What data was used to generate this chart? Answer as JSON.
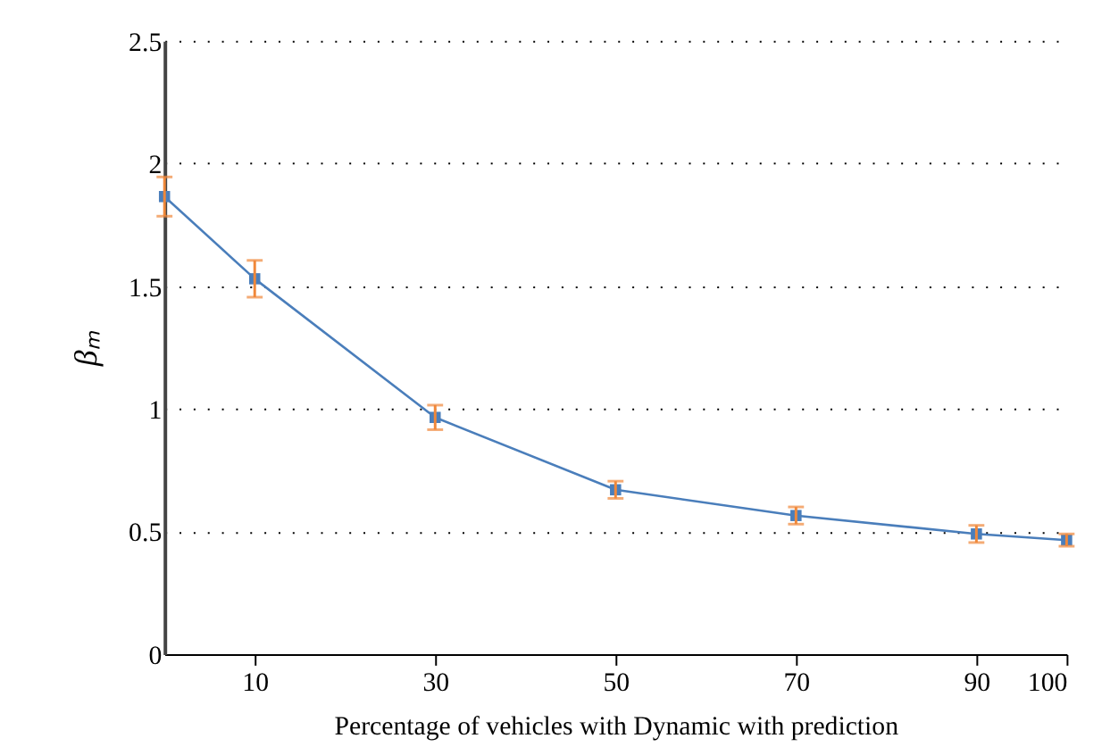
{
  "chart_data": {
    "type": "line",
    "xlabel": "Percentage of vehicles with Dynamic with prediction",
    "ylabel": "βₘ",
    "x": [
      0,
      10,
      30,
      50,
      70,
      90,
      100
    ],
    "series": [
      {
        "color": "#4a7ebb",
        "values": [
          1.865,
          1.53,
          0.965,
          0.67,
          0.565,
          0.49,
          0.465
        ],
        "errors": [
          0.08,
          0.075,
          0.05,
          0.035,
          0.035,
          0.035,
          0.025
        ]
      }
    ],
    "xlim": [
      0,
      100
    ],
    "xticks": [
      10,
      30,
      50,
      70,
      90,
      100
    ],
    "ylim": [
      0,
      2.5
    ],
    "yticks": [
      0,
      0.5,
      1,
      1.5,
      2,
      2.5
    ],
    "grid": "y",
    "marker": "square",
    "line_style": "solid"
  }
}
